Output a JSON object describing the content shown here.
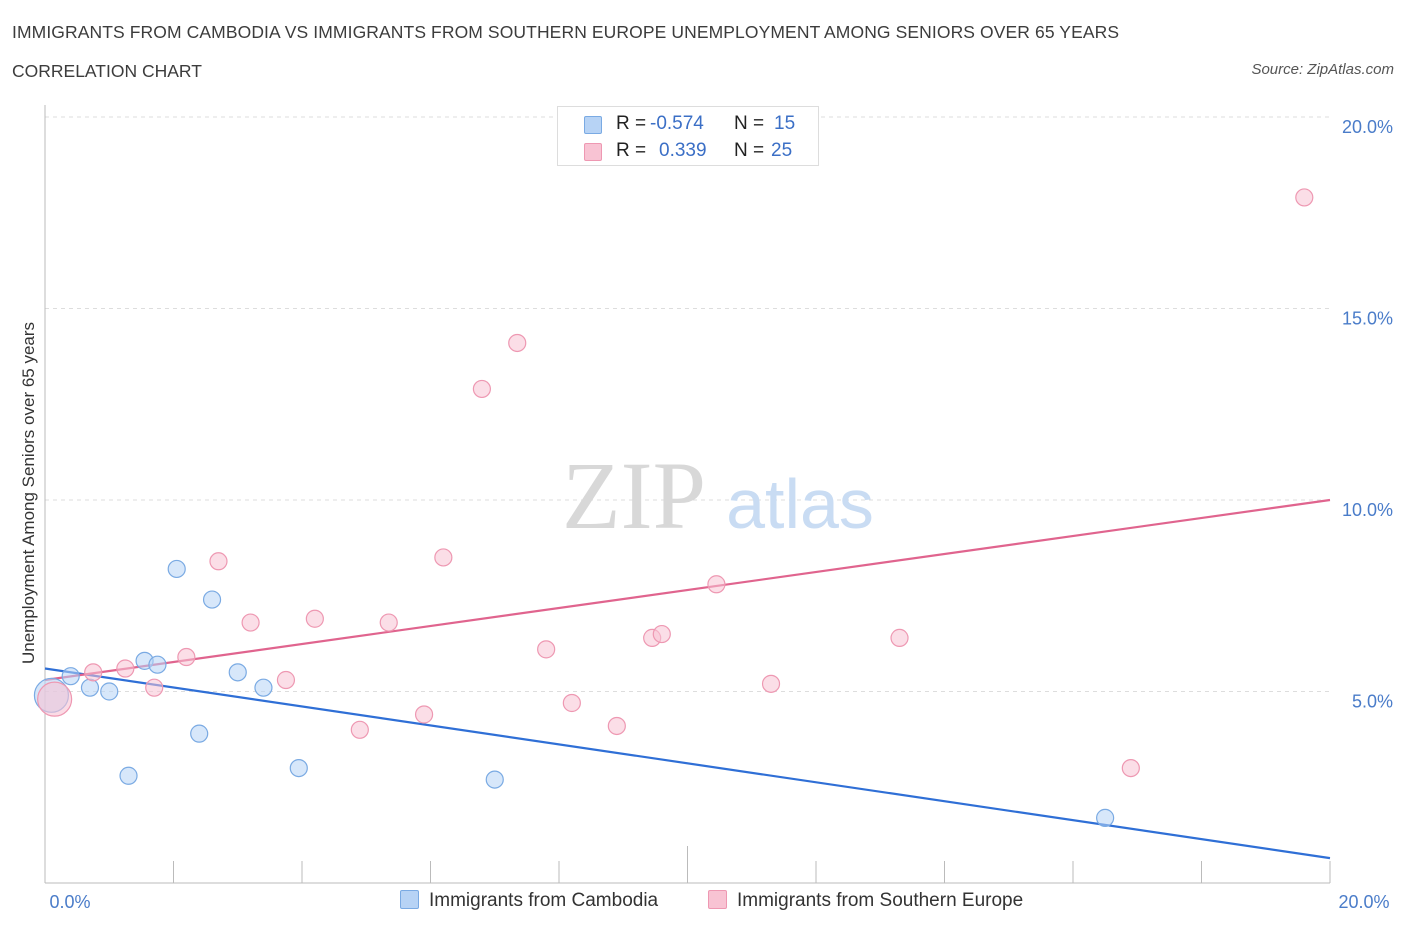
{
  "header": {
    "title": "IMMIGRANTS FROM CAMBODIA VS IMMIGRANTS FROM SOUTHERN EUROPE UNEMPLOYMENT AMONG SENIORS OVER 65 YEARS",
    "subtitle": "CORRELATION CHART",
    "source": "Source: ZipAtlas.com"
  },
  "watermark": {
    "zip": "ZIP",
    "atlas": "atlas"
  },
  "stats_legend": {
    "rows": [
      {
        "r_label": "R =",
        "r_value": "-0.574",
        "n_label": "N =",
        "n_value": "15"
      },
      {
        "r_label": "R =",
        "r_value": "0.339",
        "n_label": "N =",
        "n_value": "25"
      }
    ]
  },
  "legend": {
    "items": [
      {
        "label": "Immigrants from Cambodia"
      },
      {
        "label": "Immigrants from Southern Europe"
      }
    ]
  },
  "colors": {
    "cambodia_fill": "#b7d3f5",
    "cambodia_stroke": "#7aaae3",
    "cambodia_line": "#2f6fd6",
    "seurope_fill": "#f8c3d3",
    "seurope_stroke": "#ee98b2",
    "seurope_line": "#e0648e",
    "grid": "#dddddd",
    "axis_text": "#4a7cc9"
  },
  "chart_data": {
    "type": "scatter",
    "title": "IMMIGRANTS FROM CAMBODIA VS IMMIGRANTS FROM SOUTHERN EUROPE UNEMPLOYMENT AMONG SENIORS OVER 65 YEARS",
    "subtitle": "CORRELATION CHART",
    "xlabel": "",
    "ylabel": "Unemployment Among Seniors over 65 years",
    "xlim": [
      0,
      20
    ],
    "ylim": [
      0,
      20
    ],
    "x_tick_labels": [
      "0.0%",
      "20.0%"
    ],
    "y_ticks": [
      5,
      10,
      15,
      20
    ],
    "y_tick_labels": [
      "5.0%",
      "10.0%",
      "15.0%",
      "20.0%"
    ],
    "grid": true,
    "series": [
      {
        "name": "Immigrants from Cambodia",
        "r": -0.574,
        "n": 15,
        "trend": {
          "x0": 0,
          "y0": 5.6,
          "x1": 20,
          "y1": 0.65
        },
        "points": [
          {
            "x": 0.1,
            "y": 4.9,
            "big": true
          },
          {
            "x": 0.4,
            "y": 5.4
          },
          {
            "x": 0.7,
            "y": 5.1
          },
          {
            "x": 1.0,
            "y": 5.0
          },
          {
            "x": 1.3,
            "y": 2.8
          },
          {
            "x": 1.55,
            "y": 5.8
          },
          {
            "x": 1.75,
            "y": 5.7
          },
          {
            "x": 2.05,
            "y": 8.2
          },
          {
            "x": 2.4,
            "y": 3.9
          },
          {
            "x": 2.6,
            "y": 7.4
          },
          {
            "x": 3.0,
            "y": 5.5
          },
          {
            "x": 3.4,
            "y": 5.1
          },
          {
            "x": 3.95,
            "y": 3.0
          },
          {
            "x": 7.0,
            "y": 2.7
          },
          {
            "x": 16.5,
            "y": 1.7
          }
        ]
      },
      {
        "name": "Immigrants from Southern Europe",
        "r": 0.339,
        "n": 25,
        "trend": {
          "x0": 0,
          "y0": 5.3,
          "x1": 20,
          "y1": 10.0
        },
        "points": [
          {
            "x": 0.15,
            "y": 4.8,
            "big": true
          },
          {
            "x": 0.75,
            "y": 5.5
          },
          {
            "x": 1.25,
            "y": 5.6
          },
          {
            "x": 1.7,
            "y": 5.1
          },
          {
            "x": 2.2,
            "y": 5.9
          },
          {
            "x": 2.7,
            "y": 8.4
          },
          {
            "x": 3.2,
            "y": 6.8
          },
          {
            "x": 3.75,
            "y": 5.3
          },
          {
            "x": 4.2,
            "y": 6.9
          },
          {
            "x": 4.9,
            "y": 4.0
          },
          {
            "x": 5.35,
            "y": 6.8
          },
          {
            "x": 5.9,
            "y": 4.4
          },
          {
            "x": 6.2,
            "y": 8.5
          },
          {
            "x": 6.8,
            "y": 12.9
          },
          {
            "x": 7.35,
            "y": 14.1
          },
          {
            "x": 7.8,
            "y": 6.1
          },
          {
            "x": 8.2,
            "y": 4.7
          },
          {
            "x": 8.9,
            "y": 4.1
          },
          {
            "x": 9.45,
            "y": 6.4
          },
          {
            "x": 9.6,
            "y": 6.5
          },
          {
            "x": 10.45,
            "y": 7.8
          },
          {
            "x": 11.3,
            "y": 5.2
          },
          {
            "x": 13.3,
            "y": 6.4
          },
          {
            "x": 16.9,
            "y": 3.0
          },
          {
            "x": 19.6,
            "y": 17.9
          }
        ]
      }
    ]
  }
}
